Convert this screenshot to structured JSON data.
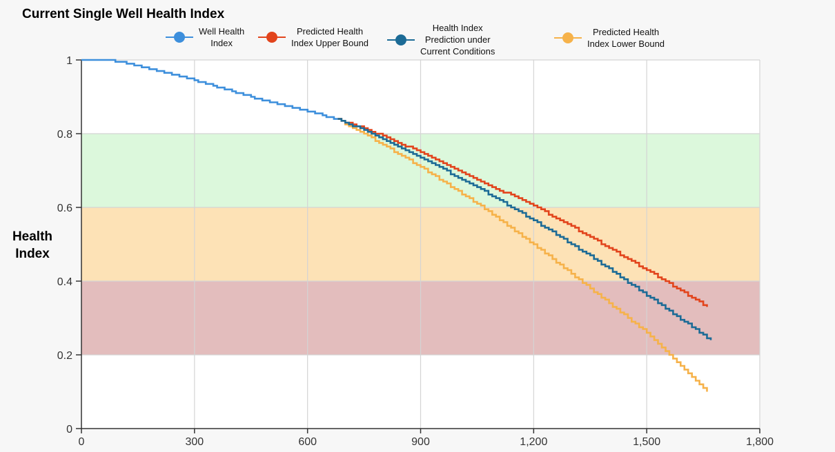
{
  "chart_data": {
    "type": "line",
    "title": "Current Single Well Health Index",
    "xlabel": "",
    "ylabel": "Health\nIndex",
    "xlim": [
      0,
      1800
    ],
    "ylim": [
      0,
      1
    ],
    "xticks": [
      0,
      300,
      600,
      900,
      1200,
      1500,
      1800
    ],
    "xtick_labels": [
      "0",
      "300",
      "600",
      "900",
      "1,200",
      "1,500",
      "1,800"
    ],
    "yticks": [
      0,
      0.2,
      0.4,
      0.6,
      0.8,
      1
    ],
    "ytick_labels": [
      "0",
      "0.2",
      "0.4",
      "0.6",
      "0.8",
      "1"
    ],
    "grid": true,
    "legend_position": "top",
    "bands": [
      {
        "y0": 0.6,
        "y1": 0.8,
        "color": "#dcf8dc"
      },
      {
        "y0": 0.4,
        "y1": 0.6,
        "color": "#fde2b6"
      },
      {
        "y0": 0.2,
        "y1": 0.4,
        "color": "#e3bdbd"
      }
    ],
    "series": [
      {
        "name": "Well Health\nIndex",
        "color": "#3d8fdc",
        "step": 10,
        "points": [
          [
            0,
            1.0
          ],
          [
            70,
            1.0
          ],
          [
            150,
            0.985
          ],
          [
            300,
            0.945
          ],
          [
            450,
            0.9
          ],
          [
            600,
            0.862
          ],
          [
            680,
            0.838
          ]
        ]
      },
      {
        "name": "Predicted Health\nIndex Upper Bound",
        "color": "#e2441c",
        "step": 10,
        "points": [
          [
            680,
            0.838
          ],
          [
            750,
            0.815
          ],
          [
            900,
            0.75
          ],
          [
            1050,
            0.675
          ],
          [
            1200,
            0.605
          ],
          [
            1350,
            0.52
          ],
          [
            1500,
            0.43
          ],
          [
            1660,
            0.33
          ]
        ]
      },
      {
        "name": "Health Index\nPrediction under\nCurrent Conditions",
        "color": "#1c6b96",
        "step": 10,
        "points": [
          [
            680,
            0.838
          ],
          [
            750,
            0.81
          ],
          [
            900,
            0.735
          ],
          [
            1050,
            0.655
          ],
          [
            1200,
            0.565
          ],
          [
            1350,
            0.468
          ],
          [
            1500,
            0.362
          ],
          [
            1670,
            0.24
          ]
        ]
      },
      {
        "name": "Predicted Health\nIndex Lower Bound",
        "color": "#f6b24a",
        "step": 10,
        "points": [
          [
            680,
            0.838
          ],
          [
            750,
            0.8
          ],
          [
            900,
            0.71
          ],
          [
            1050,
            0.61
          ],
          [
            1200,
            0.5
          ],
          [
            1350,
            0.38
          ],
          [
            1500,
            0.26
          ],
          [
            1660,
            0.1
          ]
        ]
      }
    ]
  }
}
